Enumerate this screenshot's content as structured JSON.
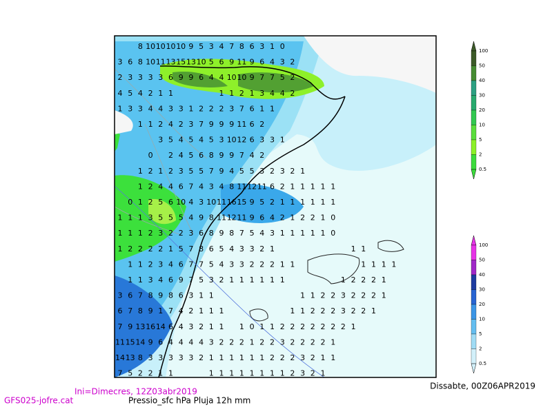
{
  "map": {
    "rows": [
      [
        null,
        null,
        8,
        10,
        10,
        10,
        10,
        9,
        5,
        3,
        4,
        7,
        8,
        6,
        3,
        1,
        0
      ],
      [
        3,
        6,
        8,
        10,
        11,
        13,
        15,
        13,
        10,
        5,
        6,
        9,
        11,
        9,
        6,
        4,
        3,
        2
      ],
      [
        2,
        3,
        3,
        3,
        3,
        6,
        9,
        9,
        6,
        4,
        4,
        10,
        10,
        9,
        7,
        7,
        5,
        2
      ],
      [
        4,
        5,
        4,
        2,
        1,
        1,
        null,
        null,
        null,
        null,
        1,
        1,
        2,
        1,
        3,
        4,
        4,
        2
      ],
      [
        1,
        3,
        3,
        4,
        4,
        3,
        3,
        1,
        2,
        2,
        2,
        3,
        7,
        6,
        1,
        1
      ],
      [
        null,
        null,
        1,
        1,
        2,
        4,
        2,
        3,
        7,
        9,
        9,
        9,
        11,
        6,
        2
      ],
      [
        null,
        null,
        null,
        null,
        3,
        5,
        4,
        5,
        4,
        5,
        3,
        10,
        12,
        6,
        3,
        3,
        1
      ],
      [
        null,
        null,
        null,
        0,
        null,
        2,
        4,
        5,
        6,
        8,
        9,
        9,
        7,
        4,
        2
      ],
      [
        null,
        null,
        1,
        2,
        1,
        2,
        3,
        5,
        5,
        7,
        9,
        4,
        5,
        5,
        3,
        2,
        3,
        2,
        1
      ],
      [
        null,
        null,
        1,
        2,
        4,
        4,
        6,
        7,
        4,
        3,
        4,
        8,
        11,
        12,
        11,
        6,
        2,
        1,
        1,
        1,
        1,
        1
      ],
      [
        null,
        0,
        1,
        2,
        5,
        6,
        10,
        4,
        3,
        10,
        11,
        16,
        15,
        9,
        5,
        2,
        1,
        1,
        1,
        1,
        1,
        1
      ],
      [
        1,
        1,
        1,
        3,
        5,
        5,
        5,
        4,
        9,
        8,
        11,
        12,
        11,
        9,
        6,
        4,
        2,
        1,
        2,
        2,
        1,
        0
      ],
      [
        1,
        1,
        1,
        2,
        3,
        2,
        2,
        3,
        6,
        8,
        9,
        8,
        7,
        5,
        4,
        3,
        1,
        1,
        1,
        1,
        1,
        0
      ],
      [
        1,
        2,
        2,
        2,
        2,
        1,
        5,
        7,
        8,
        6,
        5,
        4,
        3,
        3,
        2,
        1,
        null,
        null,
        null,
        null,
        null,
        null,
        null,
        1,
        1
      ],
      [
        null,
        1,
        1,
        2,
        3,
        4,
        6,
        7,
        7,
        5,
        4,
        3,
        3,
        2,
        2,
        2,
        1,
        1,
        null,
        null,
        null,
        null,
        null,
        null,
        1,
        1,
        1,
        1
      ],
      [
        null,
        1,
        1,
        3,
        4,
        6,
        9,
        7,
        5,
        3,
        2,
        1,
        1,
        1,
        1,
        1,
        1,
        null,
        null,
        null,
        null,
        null,
        1,
        2,
        2,
        2,
        1
      ],
      [
        3,
        6,
        7,
        8,
        9,
        8,
        6,
        3,
        1,
        1,
        null,
        null,
        null,
        null,
        null,
        null,
        null,
        null,
        1,
        1,
        2,
        2,
        3,
        2,
        2,
        2,
        1
      ],
      [
        6,
        7,
        8,
        9,
        1,
        7,
        4,
        2,
        1,
        1,
        1,
        null,
        null,
        null,
        null,
        null,
        null,
        1,
        1,
        2,
        2,
        2,
        3,
        2,
        2,
        1
      ],
      [
        7,
        9,
        13,
        16,
        14,
        6,
        4,
        3,
        2,
        1,
        1,
        null,
        1,
        0,
        1,
        1,
        2,
        2,
        2,
        2,
        2,
        2,
        2,
        1
      ],
      [
        11,
        15,
        14,
        9,
        6,
        4,
        4,
        4,
        4,
        3,
        2,
        2,
        2,
        1,
        2,
        2,
        3,
        2,
        2,
        2,
        2,
        1
      ],
      [
        14,
        13,
        8,
        3,
        3,
        3,
        3,
        3,
        2,
        1,
        1,
        1,
        1,
        1,
        1,
        2,
        2,
        2,
        3,
        2,
        1,
        1
      ],
      [
        7,
        5,
        2,
        2,
        1,
        1,
        null,
        null,
        null,
        1,
        1,
        1,
        1,
        1,
        1,
        1,
        1,
        2,
        3,
        2,
        1
      ]
    ]
  },
  "legend_precip": {
    "labels": [
      100,
      50,
      40,
      30,
      20,
      10,
      5,
      2,
      0.5
    ]
  },
  "legend_pressure": {
    "labels": [
      100,
      50,
      40,
      30,
      20,
      10,
      5,
      2,
      0.5
    ]
  },
  "footer": {
    "valid": "Dissabte, 00Z06APR2019",
    "init": "Ini=Dimecres, 12Z03abr2019",
    "source": "GFS025-jofre.cat",
    "fields": "Pressio_sfc hPa Pluja 12h mm"
  }
}
